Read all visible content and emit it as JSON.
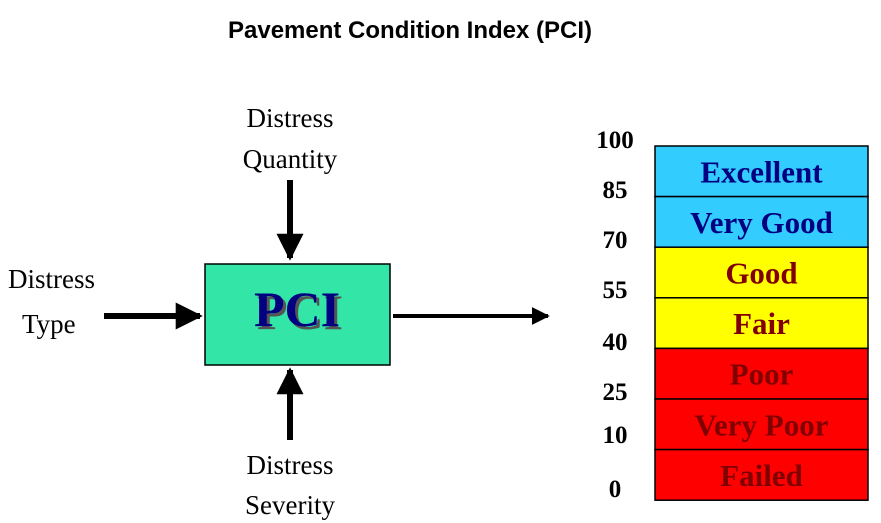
{
  "title": "Pavement Condition Index (PCI)",
  "inputs": {
    "quantity": [
      "Distress",
      "Quantity"
    ],
    "type": [
      "Distress",
      "Type"
    ],
    "severity": [
      "Distress",
      "Severity"
    ]
  },
  "center": {
    "label": "PCI"
  },
  "scale": {
    "ticks": [
      100,
      85,
      70,
      55,
      40,
      25,
      10,
      0
    ],
    "bands": [
      {
        "label": "Excellent",
        "color": "#33ccff",
        "text_color": "#000080"
      },
      {
        "label": "Very Good",
        "color": "#33ccff",
        "text_color": "#000080"
      },
      {
        "label": "Good",
        "color": "#ffff00",
        "text_color": "#800000"
      },
      {
        "label": "Fair",
        "color": "#ffff00",
        "text_color": "#800000"
      },
      {
        "label": "Poor",
        "color": "#ff0000",
        "text_color": "#800000"
      },
      {
        "label": "Very Poor",
        "color": "#ff0000",
        "text_color": "#800000"
      },
      {
        "label": "Failed",
        "color": "#ff0000",
        "text_color": "#800000"
      }
    ]
  }
}
